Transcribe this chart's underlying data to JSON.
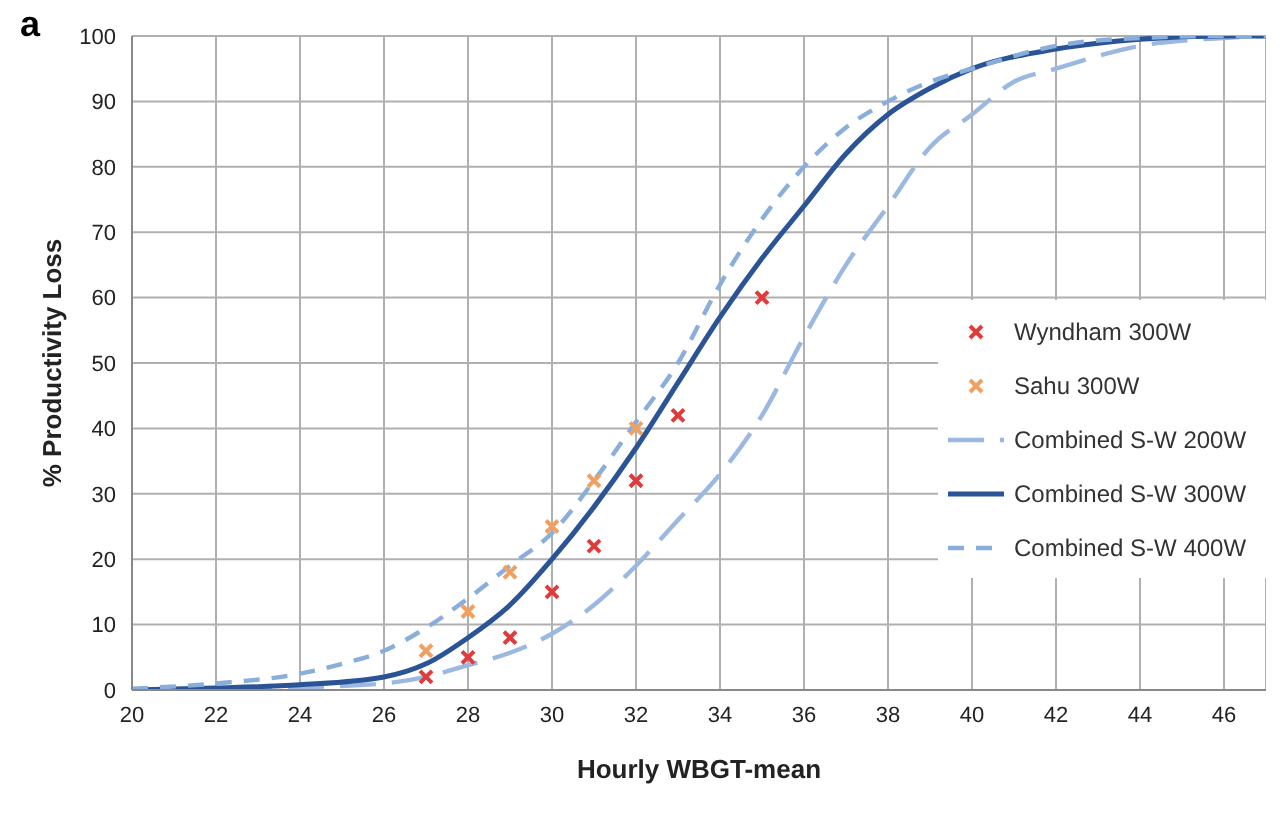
{
  "chart_data": {
    "type": "line",
    "title": "a",
    "xlabel": "Hourly WBGT-mean",
    "ylabel": "% Productivity Loss",
    "xlim": [
      20,
      47
    ],
    "xticks": [
      20,
      22,
      24,
      26,
      28,
      30,
      32,
      34,
      36,
      38,
      40,
      42,
      44,
      46
    ],
    "ylim": [
      0,
      100
    ],
    "yticks": [
      0,
      10,
      20,
      30,
      40,
      50,
      60,
      70,
      80,
      90,
      100
    ],
    "grid": true,
    "legend": "right",
    "series": [
      {
        "name": "Wyndham 300W",
        "type": "scatter",
        "marker": "cross",
        "color": "#e03a3a",
        "x": [
          27,
          28,
          29,
          30,
          31,
          32,
          33,
          35
        ],
        "values": [
          2,
          5,
          8,
          15,
          22,
          32,
          42,
          60
        ]
      },
      {
        "name": "Sahu 300W",
        "type": "scatter",
        "marker": "cross",
        "color": "#f0a060",
        "x": [
          27,
          28,
          29,
          30,
          31,
          32
        ],
        "values": [
          6,
          12,
          18,
          25,
          32,
          40
        ]
      },
      {
        "name": "Combined S-W 200W",
        "type": "line",
        "line_style": "dashed",
        "color": "#9ab8e0",
        "x": [
          20,
          22,
          24,
          26,
          27,
          28,
          29,
          30,
          31,
          32,
          33,
          34,
          35,
          36,
          37,
          38,
          39,
          40,
          41,
          42,
          44,
          46,
          47
        ],
        "values": [
          0,
          0.1,
          0.4,
          1,
          2,
          3.8,
          5.7,
          8.6,
          13,
          19,
          26,
          33,
          42,
          54,
          65,
          74,
          83,
          88,
          93,
          95,
          98.5,
          99.7,
          100
        ]
      },
      {
        "name": "Combined S-W 300W",
        "type": "line",
        "line_style": "solid",
        "color": "#2a5496",
        "x": [
          20,
          22,
          24,
          26,
          27,
          28,
          29,
          30,
          31,
          32,
          33,
          34,
          35,
          36,
          37,
          38,
          39,
          40,
          42,
          44,
          46,
          47
        ],
        "values": [
          0,
          0.3,
          0.8,
          2,
          4,
          8,
          13,
          20,
          28,
          37,
          47,
          57,
          66,
          74,
          82,
          88,
          92,
          95,
          98,
          99.5,
          100,
          100
        ]
      },
      {
        "name": "Combined S-W 400W",
        "type": "line",
        "line_style": "dotted",
        "color": "#8aaedc",
        "x": [
          20,
          22,
          24,
          25,
          26,
          27,
          28,
          29,
          30,
          31,
          32,
          33,
          34,
          35,
          36,
          37,
          38,
          39,
          40,
          42,
          44,
          46,
          47
        ],
        "values": [
          0.2,
          1,
          2.5,
          4,
          6,
          9.5,
          14,
          19,
          24,
          32,
          41,
          50,
          62,
          72,
          80,
          86,
          90,
          93,
          95,
          98.5,
          99.7,
          100,
          100
        ]
      }
    ]
  }
}
